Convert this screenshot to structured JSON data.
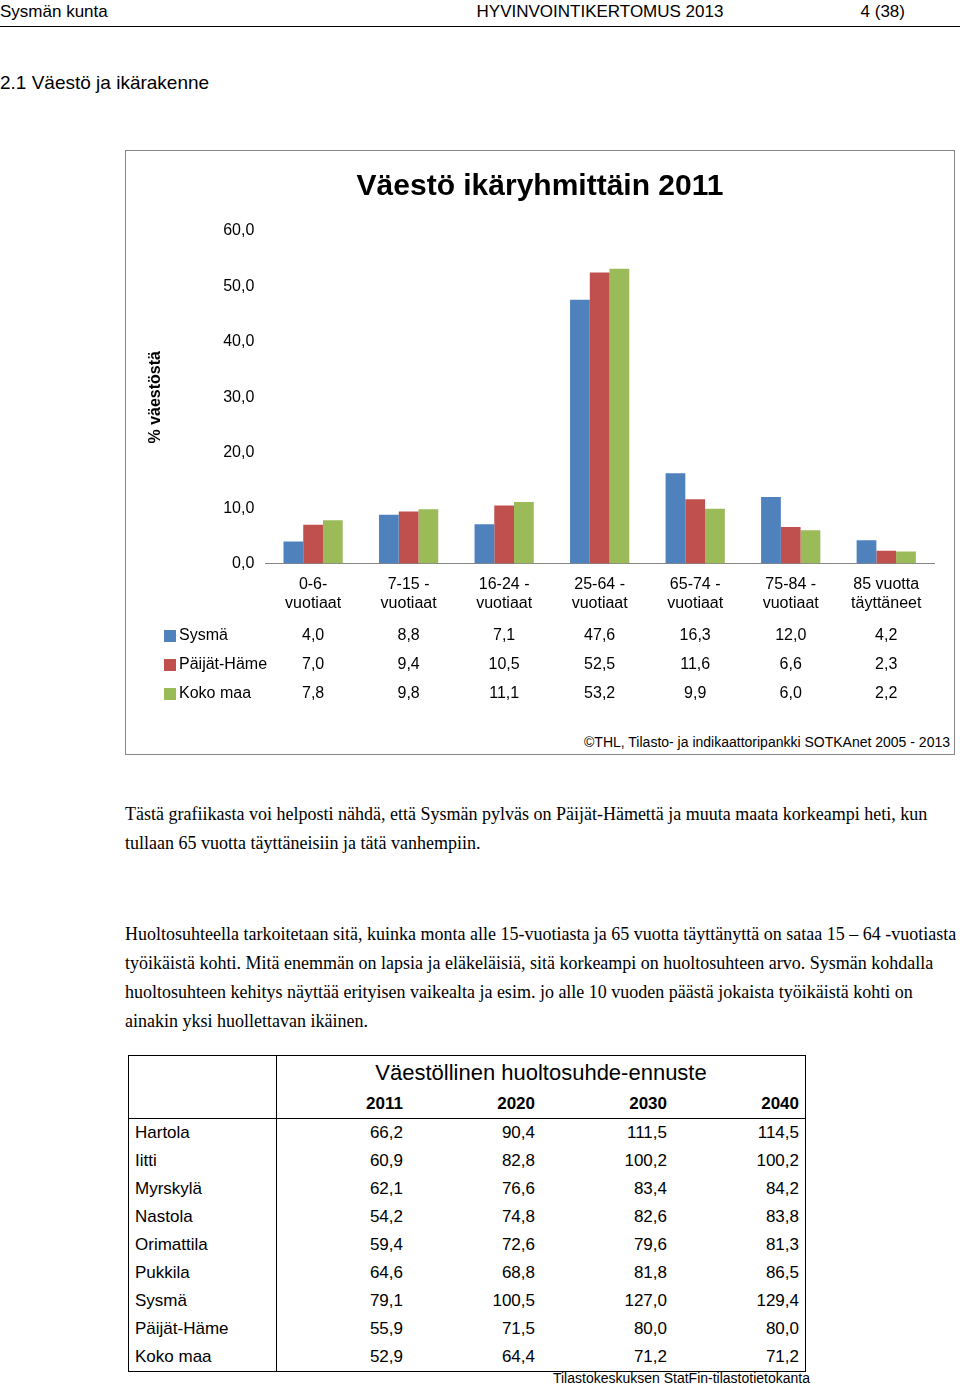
{
  "header": {
    "left": "Sysmän kunta",
    "center": "HYVINVOINTIKERTOMUS 2013",
    "right": "4 (38)"
  },
  "section_title": "2.1 Väestö ja ikärakenne",
  "chart_data": {
    "type": "bar",
    "title": "Väestö ikäryhmittäin 2011",
    "ylabel": "% väestöstä",
    "categories": [
      "0-6-\nvuotiaat",
      "7-15 -\nvuotiaat",
      "16-24 -\nvuotiaat",
      "25-64 -\nvuotiaat",
      "65-74 -\nvuotiaat",
      "75-84 -\nvuotiaat",
      "85 vuotta\ntäyttäneet"
    ],
    "series": [
      {
        "name": "Sysmä",
        "color": "#4f81bd",
        "values": [
          4.0,
          8.8,
          7.1,
          47.6,
          16.3,
          12.0,
          4.2
        ],
        "value_labels": [
          "4,0",
          "8,8",
          "7,1",
          "47,6",
          "16,3",
          "12,0",
          "4,2"
        ]
      },
      {
        "name": "Päijät-Häme",
        "color": "#c0504d",
        "values": [
          7.0,
          9.4,
          10.5,
          52.5,
          11.6,
          6.6,
          2.3
        ],
        "value_labels": [
          "7,0",
          "9,4",
          "10,5",
          "52,5",
          "11,6",
          "6,6",
          "2,3"
        ]
      },
      {
        "name": "Koko maa",
        "color": "#9bbb59",
        "values": [
          7.8,
          9.8,
          11.1,
          53.2,
          9.9,
          6.0,
          2.2
        ],
        "value_labels": [
          "7,8",
          "9,8",
          "11,1",
          "53,2",
          "9,9",
          "6,0",
          "2,2"
        ]
      }
    ],
    "ylim": [
      0,
      60
    ],
    "yticks": [
      {
        "value": 0,
        "label": "0,0"
      },
      {
        "value": 10,
        "label": "10,0"
      },
      {
        "value": 20,
        "label": "20,0"
      },
      {
        "value": 30,
        "label": "30,0"
      },
      {
        "value": 40,
        "label": "40,0"
      },
      {
        "value": 50,
        "label": "50,0"
      },
      {
        "value": 60,
        "label": "60,0"
      }
    ],
    "grid": false
  },
  "chart_source": "©THL, Tilasto- ja indikaattoripankki SOTKAnet 2005 - 2013",
  "paragraphs": [
    "Tästä grafiikasta voi helposti nähdä, että Sysmän pylväs on Päijät-Hämettä ja muuta maata korkeampi heti, kun tullaan 65 vuotta täyttäneisiin ja tätä vanhempiin.",
    "Huoltosuhteella tarkoitetaan sitä, kuinka monta alle 15-vuotiasta ja 65 vuotta täyttänyttä on sataa 15 – 64 -vuotiasta työikäistä kohti. Mitä enemmän on lapsia ja eläkeläisiä, sitä korkeampi on huoltosuhteen arvo. Sysmän kohdalla huoltosuhteen kehitys näyttää erityisen vaikealta ja esim. jo alle 10 vuoden päästä jokaista työikäistä kohti on ainakin yksi huollettavan ikäinen."
  ],
  "table": {
    "title": "Väestöllinen huoltosuhde-ennuste",
    "columns": [
      "2011",
      "2020",
      "2030",
      "2040"
    ],
    "rows": [
      [
        "Hartola",
        "66,2",
        "90,4",
        "111,5",
        "114,5"
      ],
      [
        "Iitti",
        "60,9",
        "82,8",
        "100,2",
        "100,2"
      ],
      [
        "Myrskylä",
        "62,1",
        "76,6",
        "83,4",
        "84,2"
      ],
      [
        "Nastola",
        "54,2",
        "74,8",
        "82,6",
        "83,8"
      ],
      [
        "Orimattila",
        "59,4",
        "72,6",
        "79,6",
        "81,3"
      ],
      [
        "Pukkila",
        "64,6",
        "68,8",
        "81,8",
        "86,5"
      ],
      [
        "Sysmä",
        "79,1",
        "100,5",
        "127,0",
        "129,4"
      ],
      [
        "Päijät-Häme",
        "55,9",
        "71,5",
        "80,0",
        "80,0"
      ],
      [
        "Koko maa",
        "52,9",
        "64,4",
        "71,2",
        "71,2"
      ]
    ]
  },
  "table_source": "Tilastokeskuksen StatFin-tilastotietokanta"
}
